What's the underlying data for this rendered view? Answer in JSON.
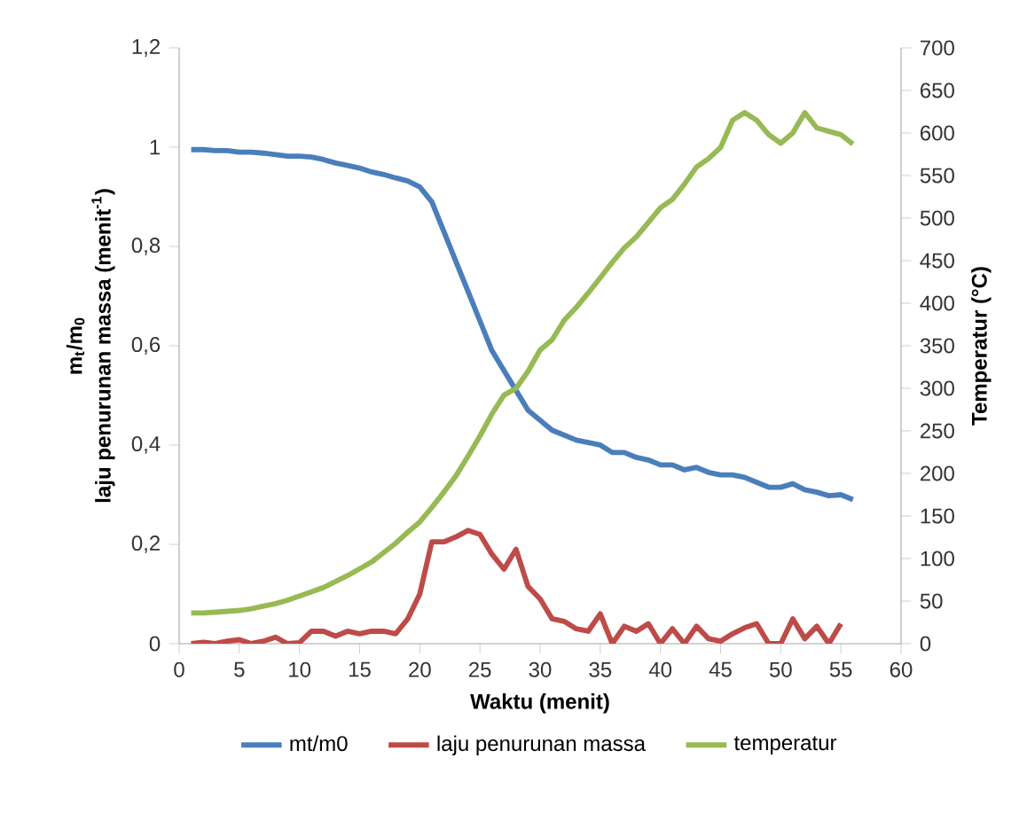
{
  "chart_data": {
    "type": "line",
    "xlabel": "Waktu (menit)",
    "ylabel": [
      "m$_{t}$/m$_{0}$",
      "laju penurunan massa (menit$^{-1}$)"
    ],
    "y2label": "Temperatur (°C)",
    "xlim": [
      0,
      60
    ],
    "xticks": [
      0,
      5,
      10,
      15,
      20,
      25,
      30,
      35,
      40,
      45,
      50,
      55,
      60
    ],
    "ylim": [
      0,
      1.2
    ],
    "yticks": [
      0,
      {
        "value": 0.2,
        "label": "0,2"
      },
      {
        "value": 0.4,
        "label": "0,4"
      },
      {
        "value": 0.6,
        "label": "0,6"
      },
      {
        "value": 0.8,
        "label": "0,8"
      },
      1,
      {
        "value": 1.2,
        "label": "1,2"
      }
    ],
    "y2lim": [
      0,
      700
    ],
    "y2ticks": [
      0,
      50,
      100,
      150,
      200,
      250,
      300,
      350,
      400,
      450,
      500,
      550,
      600,
      650,
      700
    ],
    "grid": false,
    "legend": "bottom",
    "marker": "none",
    "line_style": "solid",
    "series": [
      {
        "name": "mt/m0",
        "color": "#4a7ebb",
        "x": [
          1,
          2,
          3,
          4,
          5,
          6,
          7,
          8,
          9,
          10,
          11,
          12,
          13,
          14,
          15,
          16,
          17,
          18,
          19,
          20,
          21,
          22,
          23,
          24,
          25,
          26,
          27,
          28,
          29,
          30,
          31,
          32,
          33,
          34,
          35,
          36,
          37,
          38,
          39,
          40,
          41,
          42,
          43,
          44,
          45,
          46,
          47,
          48,
          49,
          50,
          51,
          52,
          53,
          54,
          55,
          56
        ],
        "values": [
          0.995,
          0.995,
          0.993,
          0.993,
          0.99,
          0.99,
          0.988,
          0.985,
          0.982,
          0.982,
          0.98,
          0.975,
          0.968,
          0.963,
          0.958,
          0.95,
          0.945,
          0.938,
          0.932,
          0.92,
          0.89,
          0.83,
          0.77,
          0.71,
          0.65,
          0.59,
          0.55,
          0.51,
          0.47,
          0.45,
          0.43,
          0.42,
          0.41,
          0.405,
          0.4,
          0.385,
          0.385,
          0.375,
          0.37,
          0.36,
          0.36,
          0.35,
          0.355,
          0.345,
          0.34,
          0.34,
          0.335,
          0.325,
          0.315,
          0.315,
          0.322,
          0.31,
          0.305,
          0.298,
          0.3,
          0.29
        ]
      },
      {
        "name": "laju penurunan massa",
        "color": "#be4b48",
        "x": [
          1,
          2,
          3,
          4,
          5,
          6,
          7,
          8,
          9,
          10,
          11,
          12,
          13,
          14,
          15,
          16,
          17,
          18,
          19,
          20,
          21,
          22,
          23,
          24,
          25,
          26,
          27,
          28,
          29,
          30,
          31,
          32,
          33,
          34,
          35,
          36,
          37,
          38,
          39,
          40,
          41,
          42,
          43,
          44,
          45,
          46,
          47,
          48,
          49,
          50,
          51,
          52,
          53,
          54,
          55
        ],
        "values": [
          0,
          0.003,
          0,
          0.005,
          0.008,
          0,
          0.005,
          0.013,
          0,
          0.002,
          0.025,
          0.025,
          0.015,
          0.025,
          0.02,
          0.025,
          0.025,
          0.02,
          0.05,
          0.1,
          0.205,
          0.205,
          0.215,
          0.228,
          0.22,
          0.18,
          0.15,
          0.19,
          0.115,
          0.09,
          0.05,
          0.045,
          0.03,
          0.025,
          0.06,
          0,
          0.035,
          0.025,
          0.04,
          0,
          0.03,
          0,
          0.035,
          0.01,
          0.005,
          0.02,
          0.032,
          0.04,
          0,
          0,
          0.05,
          0.01,
          0.035,
          0,
          0.04
        ]
      },
      {
        "name": "temperatur",
        "color": "#98b954",
        "axis": "y2",
        "x": [
          1,
          2,
          3,
          4,
          5,
          6,
          7,
          8,
          9,
          10,
          11,
          12,
          13,
          14,
          15,
          16,
          17,
          18,
          19,
          20,
          21,
          22,
          23,
          24,
          25,
          26,
          27,
          28,
          29,
          30,
          31,
          32,
          33,
          34,
          35,
          36,
          37,
          38,
          39,
          40,
          41,
          42,
          43,
          44,
          45,
          46,
          47,
          48,
          49,
          50,
          51,
          52,
          53,
          54,
          55,
          56
        ],
        "values": [
          36,
          36,
          37,
          38,
          39,
          41,
          44,
          47,
          51,
          56,
          61,
          66,
          73,
          80,
          88,
          96,
          107,
          118,
          131,
          143,
          160,
          178,
          197,
          220,
          244,
          270,
          292,
          300,
          320,
          345,
          357,
          380,
          395,
          412,
          430,
          448,
          465,
          478,
          495,
          512,
          522,
          540,
          560,
          570,
          583,
          615,
          624,
          615,
          598,
          588,
          600,
          624,
          606,
          602,
          598,
          587
        ]
      }
    ]
  }
}
